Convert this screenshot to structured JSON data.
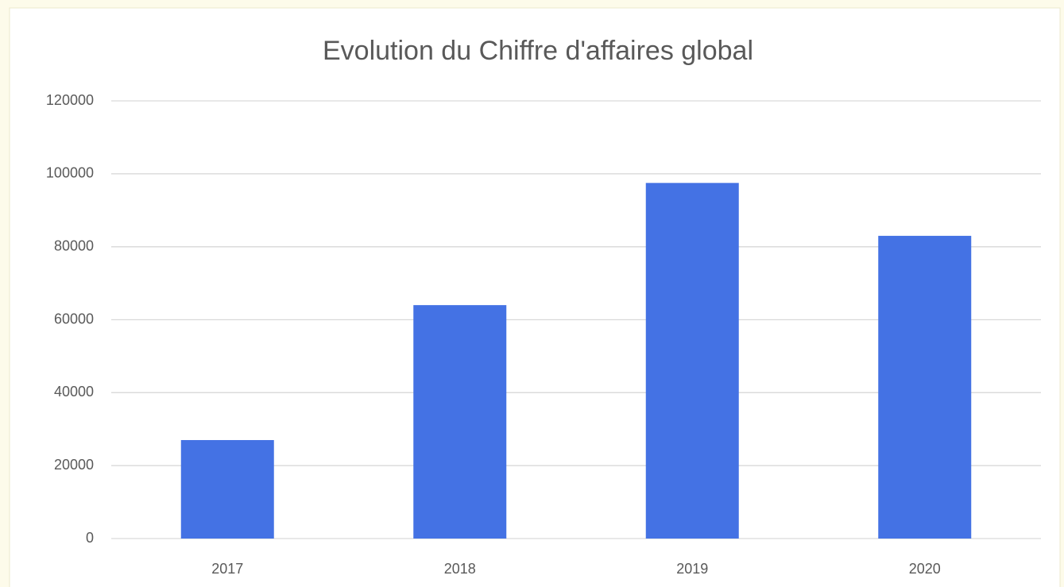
{
  "chart_data": {
    "type": "bar",
    "title": "Evolution du Chiffre d'affaires global",
    "categories": [
      "2017",
      "2018",
      "2019",
      "2020"
    ],
    "values": [
      27000,
      64000,
      97500,
      83000
    ],
    "color": "#4472e4",
    "ylim": [
      0,
      120000
    ],
    "yticks": [
      0,
      20000,
      40000,
      60000,
      80000,
      100000,
      120000
    ],
    "grid": true
  }
}
